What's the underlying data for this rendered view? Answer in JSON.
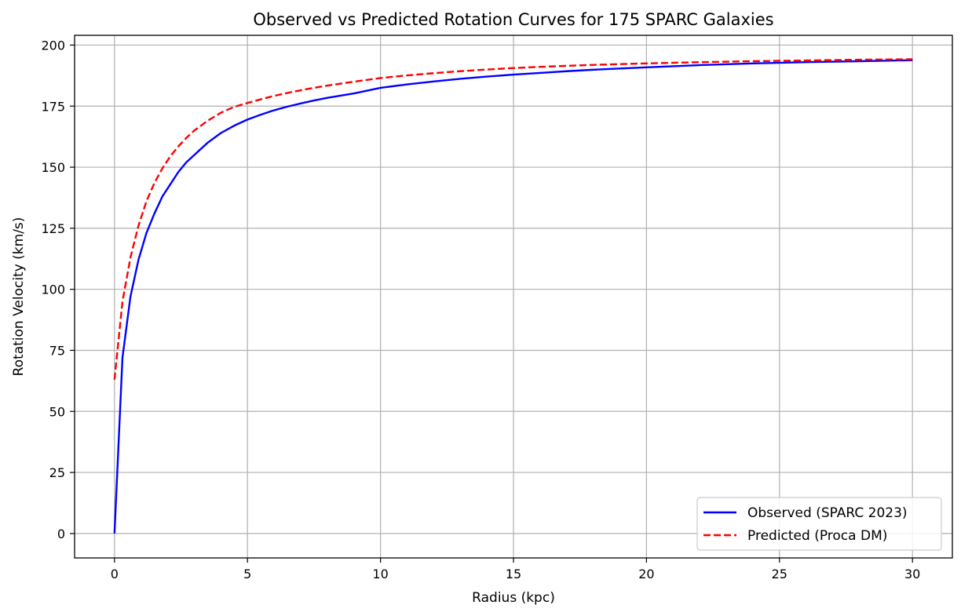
{
  "chart_data": {
    "type": "line",
    "title": "Observed vs Predicted Rotation Curves for 175 SPARC Galaxies",
    "xlabel": "Radius (kpc)",
    "ylabel": "Rotation Velocity (km/s)",
    "xlim": [
      -1.5,
      31.5
    ],
    "ylim": [
      -10,
      204
    ],
    "xticks": [
      0,
      5,
      10,
      15,
      20,
      25,
      30
    ],
    "yticks": [
      0,
      25,
      50,
      75,
      100,
      125,
      150,
      175,
      200
    ],
    "grid": true,
    "legend_position": "lower-right",
    "series": [
      {
        "name": "Observed (SPARC 2023)",
        "color": "#0000ff",
        "style": "solid",
        "x": [
          0,
          0.3,
          0.6,
          0.9,
          1.2,
          1.5,
          1.8,
          2.1,
          2.4,
          2.7,
          3.0,
          3.5,
          4.0,
          4.5,
          5.0,
          5.5,
          6.0,
          6.5,
          7.0,
          7.5,
          8.0,
          9.0,
          10.0,
          11.0,
          12.0,
          13.0,
          14.0,
          15.0,
          16.0,
          17.0,
          18.0,
          19.0,
          20.0,
          22.0,
          24.0,
          26.0,
          28.0,
          30.0
        ],
        "y": [
          0,
          72,
          97,
          112,
          123,
          131,
          138,
          143,
          148,
          152,
          155,
          160,
          164,
          167,
          169.5,
          171.5,
          173.3,
          174.8,
          176.1,
          177.3,
          178.4,
          180.2,
          182.5,
          183.9,
          185.1,
          186.2,
          187.1,
          187.9,
          188.6,
          189.3,
          189.9,
          190.4,
          190.9,
          191.8,
          192.5,
          193.0,
          193.4,
          193.8
        ]
      },
      {
        "name": "Predicted (Proca DM)",
        "color": "#ff0000",
        "style": "dashed",
        "x": [
          0,
          0.3,
          0.6,
          0.9,
          1.2,
          1.5,
          1.8,
          2.1,
          2.4,
          2.7,
          3.0,
          3.5,
          4.0,
          4.5,
          5.0,
          5.5,
          6.0,
          6.5,
          7.0,
          7.5,
          8.0,
          9.0,
          10.0,
          11.0,
          12.0,
          13.0,
          14.0,
          15.0,
          16.0,
          17.0,
          18.0,
          19.0,
          20.0,
          22.0,
          24.0,
          26.0,
          28.0,
          30.0
        ],
        "y": [
          63,
          95,
          113,
          126,
          136,
          143.5,
          149.5,
          154.5,
          158.5,
          162,
          165,
          169,
          172.3,
          174.7,
          176.3,
          177.8,
          179.2,
          180.4,
          181.5,
          182.5,
          183.4,
          185.0,
          186.5,
          187.6,
          188.5,
          189.3,
          190.0,
          190.6,
          191.1,
          191.5,
          191.9,
          192.2,
          192.5,
          193.0,
          193.4,
          193.7,
          194.0,
          194.2
        ]
      }
    ]
  }
}
